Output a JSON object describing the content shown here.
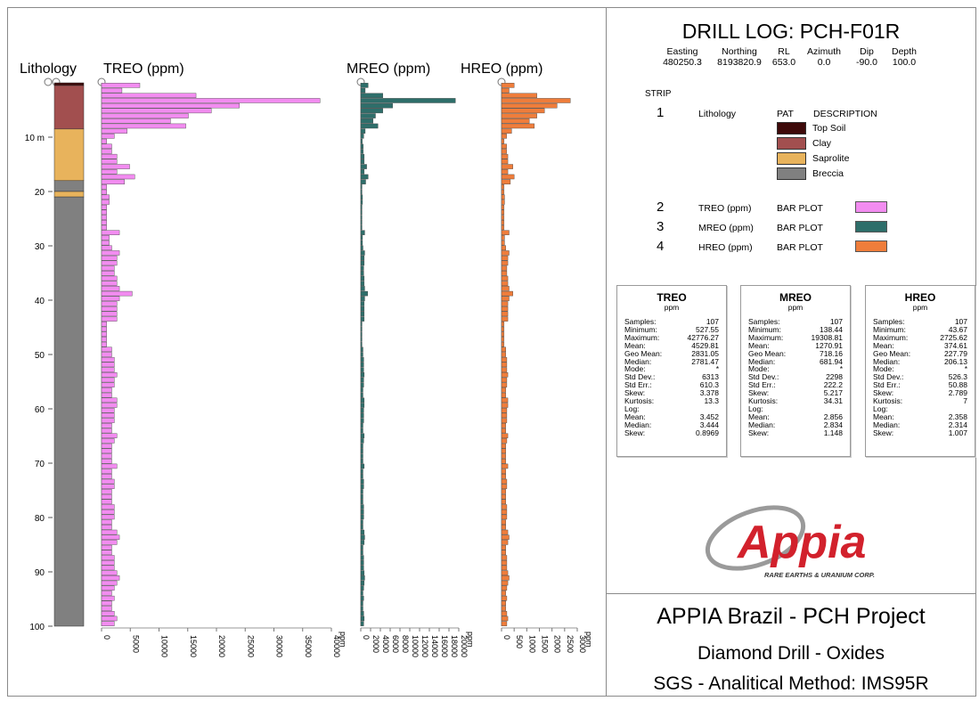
{
  "header": {
    "title": "DRILL LOG: PCH-F01R",
    "collar": [
      {
        "label": "Easting",
        "value": "480250.3"
      },
      {
        "label": "Northing",
        "value": "8193820.9"
      },
      {
        "label": "RL",
        "value": "653.0"
      },
      {
        "label": "Azimuth",
        "value": "0.0"
      },
      {
        "label": "Dip",
        "value": "-90.0"
      },
      {
        "label": "Depth",
        "value": "100.0"
      }
    ]
  },
  "legend": {
    "strip_label": "STRIP",
    "col_pat": "PAT",
    "col_desc": "DESCRIPTION",
    "strips": [
      {
        "num": "1",
        "name": "Lithology"
      },
      {
        "num": "2",
        "name": "TREO (ppm)",
        "type": "BAR PLOT",
        "color": "#f28cf0"
      },
      {
        "num": "3",
        "name": "MREO (ppm)",
        "type": "BAR PLOT",
        "color": "#2e6e6a"
      },
      {
        "num": "4",
        "name": "HREO (ppm)",
        "type": "BAR PLOT",
        "color": "#ef7d3b"
      }
    ],
    "lithologies": [
      {
        "name": "Top Soil",
        "color": "#3e0a0a"
      },
      {
        "name": "Clay",
        "color": "#a24f4f"
      },
      {
        "name": "Saprolite",
        "color": "#e8b35c"
      },
      {
        "name": "Breccia",
        "color": "#808080"
      }
    ]
  },
  "stats": [
    {
      "title": "TREO",
      "unit": "ppm",
      "rows": [
        [
          "Samples:",
          "107"
        ],
        [
          "Minimum:",
          "527.55"
        ],
        [
          "Maximum:",
          "42776.27"
        ],
        [
          "Mean:",
          "4529.81"
        ],
        [
          "Geo Mean:",
          "2831.05"
        ],
        [
          "Median:",
          "2781.47"
        ],
        [
          "Mode:",
          "*"
        ],
        [
          "Std Dev.:",
          "6313"
        ],
        [
          "Std Err.:",
          "610.3"
        ],
        [
          "Skew:",
          "3.378"
        ],
        [
          "Kurtosis:",
          "13.3"
        ],
        [
          "Log:",
          ""
        ],
        [
          "Mean:",
          "3.452"
        ],
        [
          "Median:",
          "3.444"
        ],
        [
          "Skew:",
          "0.8969"
        ]
      ]
    },
    {
      "title": "MREO",
      "unit": "ppm",
      "rows": [
        [
          "Samples:",
          "107"
        ],
        [
          "Minimum:",
          "138.44"
        ],
        [
          "Maximum:",
          "19308.81"
        ],
        [
          "Mean:",
          "1270.91"
        ],
        [
          "Geo Mean:",
          "718.16"
        ],
        [
          "Median:",
          "681.94"
        ],
        [
          "Mode:",
          "*"
        ],
        [
          "Std Dev.:",
          "2298"
        ],
        [
          "Std Err.:",
          "222.2"
        ],
        [
          "Skew:",
          "5.217"
        ],
        [
          "Kurtosis:",
          "34.31"
        ],
        [
          "Log:",
          ""
        ],
        [
          "Mean:",
          "2.856"
        ],
        [
          "Median:",
          "2.834"
        ],
        [
          "Skew:",
          "1.148"
        ]
      ]
    },
    {
      "title": "HREO",
      "unit": "ppm",
      "rows": [
        [
          "Samples:",
          "107"
        ],
        [
          "Minimum:",
          "43.67"
        ],
        [
          "Maximum:",
          "2725.62"
        ],
        [
          "Mean:",
          "374.61"
        ],
        [
          "Geo Mean:",
          "227.79"
        ],
        [
          "Median:",
          "206.13"
        ],
        [
          "Mode:",
          "*"
        ],
        [
          "Std Dev.:",
          "526.3"
        ],
        [
          "Std Err.:",
          "50.88"
        ],
        [
          "Skew:",
          "2.789"
        ],
        [
          "Kurtosis:",
          "7"
        ],
        [
          "Log:",
          ""
        ],
        [
          "Mean:",
          "2.358"
        ],
        [
          "Median:",
          "2.314"
        ],
        [
          "Skew:",
          "1.007"
        ]
      ]
    }
  ],
  "logo": {
    "name": "Appia",
    "tagline": "RARE EARTHS & URANIUM CORP."
  },
  "footer": {
    "line1": "APPIA Brazil - PCH Project",
    "line2": "Diamond Drill - Oxides",
    "line3": "SGS - Analitical Method: IMS95R"
  },
  "chart_data": {
    "type": "bar",
    "orientation": "horizontal",
    "depth_axis": {
      "range": [
        0,
        100
      ],
      "ticks": [
        "10 m",
        "20",
        "30",
        "40",
        "50",
        "60",
        "70",
        "80",
        "90",
        "100"
      ],
      "inverted": true
    },
    "lithology_column": {
      "title": "Lithology",
      "intervals": [
        {
          "from": 0,
          "to": 0.5,
          "lith": "Top Soil"
        },
        {
          "from": 0.5,
          "to": 8.5,
          "lith": "Clay"
        },
        {
          "from": 8.5,
          "to": 18,
          "lith": "Saprolite"
        },
        {
          "from": 18,
          "to": 20,
          "lith": "Breccia"
        },
        {
          "from": 20,
          "to": 21,
          "lith": "Saprolite"
        },
        {
          "from": 21,
          "to": 100,
          "lith": "Breccia"
        }
      ]
    },
    "series": [
      {
        "name": "TREO (ppm)",
        "axis_label": "ppm",
        "color": "#f28cf0",
        "xlim": [
          0,
          45000
        ],
        "ticks": [
          "0",
          "5000",
          "10000",
          "15000",
          "20000",
          "25000",
          "30000",
          "35000",
          "40000"
        ],
        "values": [
          7500,
          4000,
          18500,
          42776,
          27000,
          21500,
          17000,
          13500,
          16500,
          5000,
          2500,
          1000,
          2000,
          2000,
          3000,
          3000,
          5500,
          3000,
          6500,
          4500,
          1000,
          1000,
          1500,
          1500,
          1000,
          1000,
          1000,
          1000,
          1000,
          3500,
          1500,
          1500,
          2000,
          3500,
          3000,
          3000,
          2500,
          2500,
          3000,
          3000,
          3500,
          6000,
          3500,
          3000,
          3000,
          3000,
          3000,
          1000,
          1000,
          1000,
          1000,
          1000,
          2000,
          2000,
          2500,
          2500,
          2500,
          3000,
          2500,
          2500,
          2000,
          2000,
          3000,
          3000,
          2500,
          2500,
          2500,
          2000,
          2000,
          3000,
          2500,
          2000,
          2000,
          2000,
          2000,
          3000,
          2000,
          2000,
          2500,
          2500,
          2000,
          2000,
          2000,
          2500,
          2500,
          2500,
          2000,
          2000,
          3000,
          3500,
          3000,
          2000,
          2000,
          2500,
          2500,
          2500,
          3000,
          3500,
          3000,
          2500,
          2000,
          2500,
          2000,
          2000,
          2500,
          3000,
          2500
        ]
      },
      {
        "name": "MREO (ppm)",
        "axis_label": "ppm",
        "color": "#2e6e6a",
        "xlim": [
          0,
          20000
        ],
        "ticks": [
          "0",
          "2000",
          "4000",
          "6000",
          "8000",
          "10000",
          "12000",
          "14000",
          "16000",
          "18000",
          "20000"
        ],
        "values": [
          1500,
          900,
          4500,
          19309,
          6500,
          4500,
          3000,
          2500,
          3500,
          900,
          600,
          300,
          500,
          500,
          700,
          700,
          1200,
          700,
          1500,
          1000,
          250,
          250,
          350,
          350,
          250,
          250,
          250,
          250,
          250,
          800,
          350,
          350,
          450,
          800,
          700,
          700,
          600,
          600,
          700,
          700,
          800,
          1400,
          800,
          700,
          700,
          700,
          700,
          250,
          250,
          250,
          250,
          250,
          450,
          450,
          600,
          600,
          600,
          700,
          600,
          600,
          450,
          450,
          700,
          700,
          600,
          600,
          600,
          450,
          450,
          700,
          600,
          450,
          450,
          450,
          450,
          700,
          450,
          450,
          600,
          600,
          450,
          450,
          450,
          600,
          600,
          600,
          450,
          450,
          700,
          800,
          700,
          450,
          450,
          600,
          600,
          600,
          700,
          800,
          700,
          600,
          450,
          600,
          450,
          450,
          600,
          700,
          600
        ]
      },
      {
        "name": "HREO (ppm)",
        "axis_label": "ppm",
        "color": "#ef7d3b",
        "xlim": [
          0,
          3000
        ],
        "ticks": [
          "0",
          "500",
          "1000",
          "1500",
          "2000",
          "2500",
          "3000"
        ],
        "values": [
          500,
          300,
          1400,
          2726,
          2200,
          1700,
          1400,
          1100,
          1300,
          400,
          200,
          100,
          200,
          200,
          250,
          250,
          450,
          250,
          500,
          350,
          100,
          100,
          120,
          120,
          100,
          100,
          100,
          100,
          100,
          300,
          120,
          120,
          170,
          300,
          250,
          250,
          210,
          210,
          250,
          250,
          300,
          450,
          300,
          250,
          250,
          250,
          250,
          100,
          100,
          100,
          100,
          100,
          170,
          170,
          210,
          210,
          210,
          250,
          210,
          210,
          170,
          170,
          250,
          250,
          210,
          210,
          210,
          170,
          170,
          250,
          210,
          170,
          170,
          170,
          170,
          250,
          170,
          170,
          210,
          210,
          170,
          170,
          170,
          210,
          210,
          210,
          170,
          170,
          250,
          300,
          250,
          170,
          170,
          210,
          210,
          210,
          250,
          300,
          250,
          210,
          170,
          210,
          170,
          170,
          210,
          250,
          210
        ]
      }
    ]
  }
}
